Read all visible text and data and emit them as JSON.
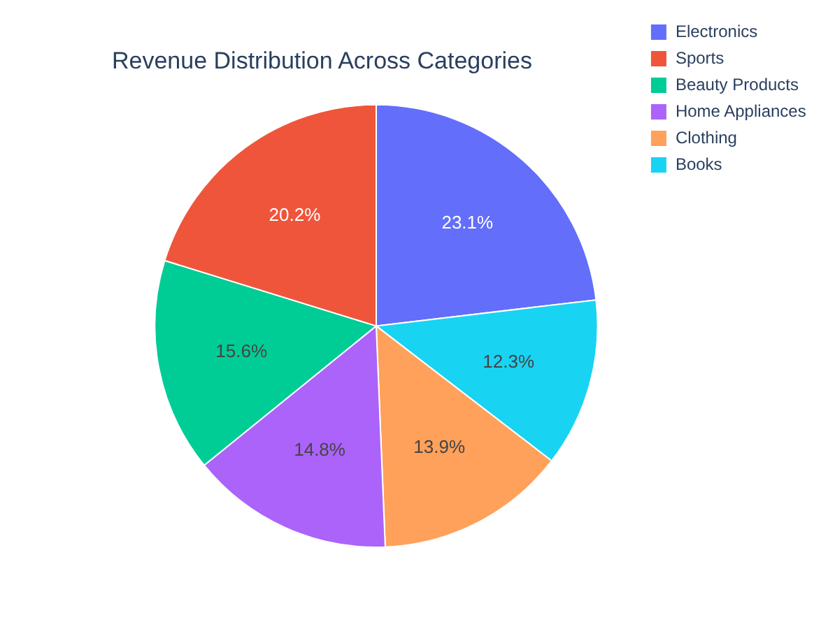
{
  "chart_data": {
    "type": "pie",
    "title": "Revenue Distribution Across Categories",
    "categories": [
      "Electronics",
      "Sports",
      "Beauty Products",
      "Home Appliances",
      "Clothing",
      "Books"
    ],
    "values": [
      23.1,
      20.2,
      15.6,
      14.8,
      13.9,
      12.3
    ],
    "value_labels": [
      "23.1%",
      "20.2%",
      "15.6%",
      "14.8%",
      "13.9%",
      "12.3%"
    ],
    "colors": [
      "#636efa",
      "#ef553b",
      "#00cc96",
      "#ab63fa",
      "#ffa15a",
      "#19d3f3"
    ],
    "legend": "top right"
  }
}
